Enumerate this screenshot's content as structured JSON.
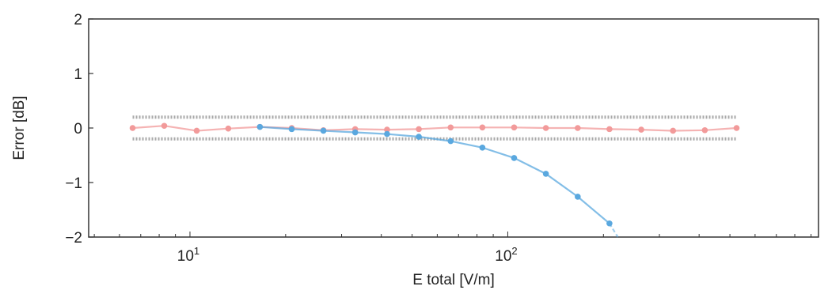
{
  "chart_data": {
    "type": "line",
    "title": "",
    "xlabel": "E total [V/m]",
    "ylabel": "Error [dB]",
    "xscale": "log",
    "xlim": [
      4.8,
      950
    ],
    "ylim": [
      -2,
      2
    ],
    "grid": false,
    "legend": "none",
    "x_ticks": [
      {
        "value": 10,
        "base": "10",
        "exp": "1"
      },
      {
        "value": 100,
        "base": "10",
        "exp": "2"
      }
    ],
    "y_ticks": [
      {
        "value": 2,
        "label": "2"
      },
      {
        "value": 1,
        "label": "1"
      },
      {
        "value": 0,
        "label": "0"
      },
      {
        "value": -1,
        "label": "−1"
      },
      {
        "value": -2,
        "label": "−2"
      }
    ],
    "tolerance_band": {
      "upper": 0.2,
      "lower": -0.2,
      "color": "#a9a9a9"
    },
    "series": [
      {
        "color": "#f29a9a",
        "x": [
          6.6,
          8.3,
          10.5,
          13.2,
          16.6,
          20.9,
          26.3,
          33.1,
          41.7,
          52.5,
          66.1,
          83.2,
          104.7,
          131.8,
          166.0,
          208.9,
          263.0,
          331.1,
          416.9,
          524.8
        ],
        "y": [
          0.0,
          0.04,
          -0.05,
          -0.01,
          0.02,
          0.0,
          -0.04,
          -0.02,
          -0.03,
          -0.02,
          0.01,
          0.01,
          0.01,
          0.0,
          0.0,
          -0.02,
          -0.03,
          -0.05,
          -0.04,
          0.0
        ]
      },
      {
        "color": "#5aa8df",
        "x": [
          16.6,
          20.9,
          26.3,
          33.1,
          41.7,
          52.5,
          66.1,
          83.2,
          104.7,
          131.8,
          166.0,
          208.9
        ],
        "y": [
          0.02,
          -0.02,
          -0.05,
          -0.08,
          -0.11,
          -0.16,
          -0.24,
          -0.36,
          -0.55,
          -0.84,
          -1.26,
          -1.75
        ],
        "extend_to": {
          "x": 222,
          "y": -2
        }
      }
    ]
  }
}
